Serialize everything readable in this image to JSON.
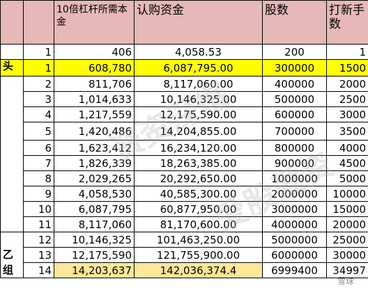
{
  "header": {
    "col1": "",
    "col2": "",
    "col3": "10倍杠杆所需本金",
    "col4": "认购资金",
    "col5": "股数",
    "col6": "打新手数"
  },
  "groups": {
    "tou": "头",
    "yi": "乙组"
  },
  "rows": [
    {
      "idx": "1",
      "principal": "406",
      "fund": "4,058.53",
      "shares": "200",
      "lots": "1"
    },
    {
      "idx": "1",
      "principal": "608,780",
      "fund": "6,087,795.00",
      "shares": "300000",
      "lots": "1500"
    },
    {
      "idx": "2",
      "principal": "811,706",
      "fund": "8,117,060.00",
      "shares": "400000",
      "lots": "2000"
    },
    {
      "idx": "3",
      "principal": "1,014,633",
      "fund": "10,146,325.00",
      "shares": "500000",
      "lots": "2500"
    },
    {
      "idx": "4",
      "principal": "1,217,559",
      "fund": "12,175,590.00",
      "shares": "600000",
      "lots": "3000"
    },
    {
      "idx": "5",
      "principal": "1,420,486",
      "fund": "14,204,855.00",
      "shares": "700000",
      "lots": "3500"
    },
    {
      "idx": "6",
      "principal": "1,623,412",
      "fund": "16,234,120.00",
      "shares": "800000",
      "lots": "4000"
    },
    {
      "idx": "7",
      "principal": "1,826,339",
      "fund": "18,263,385.00",
      "shares": "900000",
      "lots": "4500"
    },
    {
      "idx": "8",
      "principal": "2,029,265",
      "fund": "20,292,650.00",
      "shares": "1000000",
      "lots": "5000"
    },
    {
      "idx": "9",
      "principal": "4,058,530",
      "fund": "40,585,300.00",
      "shares": "2000000",
      "lots": "10000"
    },
    {
      "idx": "10",
      "principal": "6,087,795",
      "fund": "60,877,950.00",
      "shares": "3000000",
      "lots": "15000"
    },
    {
      "idx": "11",
      "principal": "8,117,060",
      "fund": "81,170,600.00",
      "shares": "4000000",
      "lots": "20000"
    },
    {
      "idx": "12",
      "principal": "10,146,325",
      "fund": "101,463,250.00",
      "shares": "5000000",
      "lots": "25000"
    },
    {
      "idx": "13",
      "principal": "12,175,590",
      "fund": "121,755,900.00",
      "shares": "6000000",
      "lots": "30000"
    },
    {
      "idx": "14",
      "principal": "14,203,637",
      "fund": "142,036,374.4",
      "shares": "6999400",
      "lots": "34997"
    }
  ],
  "watermarks": {
    "text_a": "资资深爆",
    "text_b": "爱股爱资",
    "footer": "雪球"
  },
  "colors": {
    "header_bg": "#e6b8b7",
    "highlight": "#ffff00",
    "orange_cell": "#ffe699"
  }
}
